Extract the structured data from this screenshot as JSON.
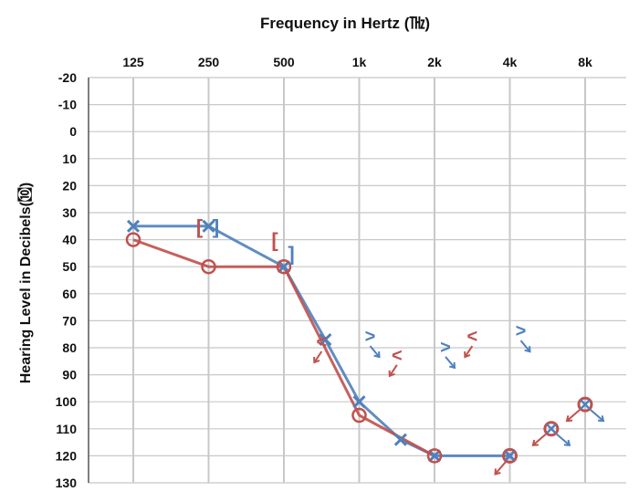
{
  "chart_data": {
    "type": "line",
    "title": "Frequency in Hertz (㎔)",
    "ylabel": "Hearing Level in Decibels(㉈)",
    "x_ticks": [
      "125",
      "250",
      "500",
      "1k",
      "2k",
      "4k",
      "8k"
    ],
    "y_ticks": [
      "-20",
      "-10",
      "0",
      "10",
      "20",
      "30",
      "40",
      "50",
      "60",
      "70",
      "80",
      "90",
      "100",
      "110",
      "120",
      "130"
    ],
    "ylim": [
      -20,
      130
    ],
    "y_inverted": true,
    "grid": true,
    "colors": {
      "red": "#c0504d",
      "blue": "#4f81bd",
      "grid": "#c8c8c8",
      "axis": "#555555"
    },
    "series": [
      {
        "marker": "circle",
        "color": "#c0504d",
        "points": [
          {
            "x": "125",
            "y": 40
          },
          {
            "x": "250",
            "y": 50
          },
          {
            "x": "500",
            "y": 50
          },
          {
            "x": "1k",
            "y": 105
          },
          {
            "x": "2k",
            "y": 120
          }
        ]
      },
      {
        "marker": "x",
        "color": "#4f81bd",
        "points": [
          {
            "x": "125",
            "y": 35
          },
          {
            "x": "250",
            "y": 35
          },
          {
            "x": "500",
            "y": 50
          },
          {
            "x": "750",
            "y": 77
          },
          {
            "x": "1k",
            "y": 100
          },
          {
            "x": "1.5k",
            "y": 114
          },
          {
            "x": "2k",
            "y": 120
          },
          {
            "x": "4k",
            "y": 120
          }
        ]
      }
    ],
    "nr_overlay_points": [
      {
        "x": "4k",
        "y": 120
      },
      {
        "x": "6k",
        "y": 110
      },
      {
        "x": "8k",
        "y": 101
      }
    ],
    "bone_conduction_brackets": [
      {
        "side": "right-ear",
        "symbol": "[",
        "color": "#c0504d",
        "x": "250",
        "y": 35
      },
      {
        "side": "left-ear",
        "symbol": "]",
        "color": "#4f81bd",
        "x": "250",
        "y": 35
      },
      {
        "side": "right-ear",
        "symbol": "[",
        "color": "#c0504d",
        "x": "500",
        "y": 40
      },
      {
        "side": "left-ear",
        "symbol": "]",
        "color": "#4f81bd",
        "x": "500",
        "y": 45
      }
    ],
    "bone_no_response": [
      {
        "symbol": "<",
        "color": "#c0504d",
        "x": "750",
        "y": 80
      },
      {
        "symbol": ">",
        "color": "#4f81bd",
        "x": "1k",
        "y": 78
      },
      {
        "symbol": "<",
        "color": "#c0504d",
        "x": "1.5k",
        "y": 85
      },
      {
        "symbol": ">",
        "color": "#4f81bd",
        "x": "2k",
        "y": 82
      },
      {
        "symbol": "<",
        "color": "#c0504d",
        "x": "3k",
        "y": 78
      },
      {
        "symbol": ">",
        "color": "#4f81bd",
        "x": "4k",
        "y": 76
      }
    ]
  }
}
